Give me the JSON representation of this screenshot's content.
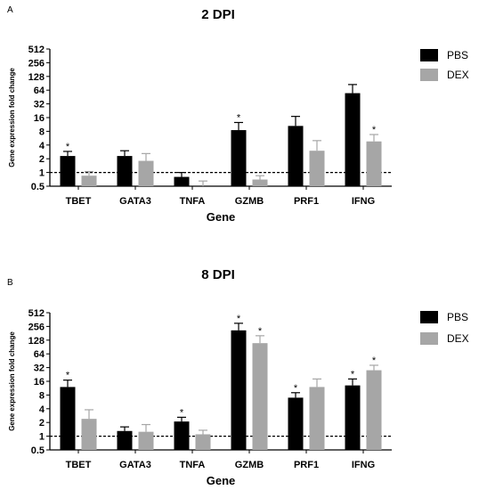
{
  "chart_data": [
    {
      "panel": "A",
      "type": "bar",
      "title": "2 DPI",
      "xlabel": "Gene",
      "ylabel": "Gene expression fold change",
      "yscale": "log2",
      "ylim": [
        0.5,
        512
      ],
      "yticks": [
        "0.5",
        "1",
        "2",
        "4",
        "8",
        "16",
        "32",
        "64",
        "128",
        "256",
        "512"
      ],
      "reference_line": 1,
      "categories": [
        "TBET",
        "GATA3",
        "TNFA",
        "GZMB",
        "PRF1",
        "IFNG"
      ],
      "series": [
        {
          "name": "PBS",
          "color": "#000000",
          "values": [
            2.3,
            2.3,
            0.8,
            8.5,
            10.5,
            55
          ],
          "errors": [
            2.9,
            3.0,
            1.0,
            12.5,
            17,
            85
          ],
          "significant": [
            true,
            false,
            false,
            true,
            false,
            false
          ]
        },
        {
          "name": "DEX",
          "color": "#a6a6a6",
          "values": [
            0.85,
            1.8,
            0.5,
            0.7,
            3.0,
            4.8
          ],
          "errors": [
            1.05,
            2.6,
            0.65,
            0.85,
            5.0,
            6.8
          ],
          "significant": [
            false,
            false,
            false,
            false,
            false,
            true
          ]
        }
      ],
      "legend_position": "right"
    },
    {
      "panel": "B",
      "type": "bar",
      "title": "8 DPI",
      "xlabel": "Gene",
      "ylabel": "Gene expression fold change",
      "yscale": "log2",
      "ylim": [
        0.5,
        512
      ],
      "yticks": [
        "0.5",
        "1",
        "2",
        "4",
        "8",
        "16",
        "32",
        "64",
        "128",
        "256",
        "512"
      ],
      "reference_line": 1,
      "categories": [
        "TBET",
        "GATA3",
        "TNFA",
        "GZMB",
        "PRF1",
        "IFNG"
      ],
      "series": [
        {
          "name": "PBS",
          "color": "#000000",
          "values": [
            12,
            1.3,
            2.1,
            210,
            7,
            13
          ],
          "errors": [
            17,
            1.6,
            2.6,
            300,
            9,
            18
          ],
          "significant": [
            true,
            false,
            true,
            true,
            true,
            true
          ]
        },
        {
          "name": "DEX",
          "color": "#a6a6a6",
          "values": [
            2.4,
            1.25,
            1.1,
            110,
            12,
            28
          ],
          "errors": [
            3.8,
            1.8,
            1.35,
            160,
            18,
            36
          ],
          "significant": [
            false,
            false,
            false,
            true,
            false,
            true
          ]
        }
      ],
      "legend_position": "right"
    }
  ]
}
